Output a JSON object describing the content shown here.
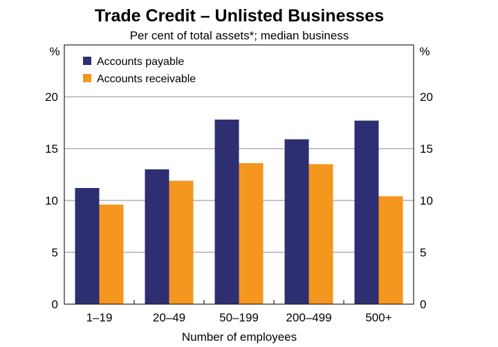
{
  "chart_data": {
    "type": "bar",
    "title": "Trade Credit – Unlisted Businesses",
    "subtitle": "Per cent of total assets*; median business",
    "xlabel": "Number of employees",
    "ylabel_left": "%",
    "ylabel_right": "%",
    "categories": [
      "1–19",
      "20–49",
      "50–199",
      "200–499",
      "500+"
    ],
    "series": [
      {
        "name": "Accounts payable",
        "color": "#2e2e73",
        "values": [
          11.2,
          13.0,
          17.8,
          15.9,
          17.7
        ]
      },
      {
        "name": "Accounts receivable",
        "color": "#f5961e",
        "values": [
          9.6,
          11.9,
          13.6,
          13.5,
          10.4
        ]
      }
    ],
    "ylim": [
      0,
      25
    ],
    "yticks": [
      0,
      5,
      10,
      15,
      20
    ],
    "legend_position": "top-left",
    "grid": true
  }
}
